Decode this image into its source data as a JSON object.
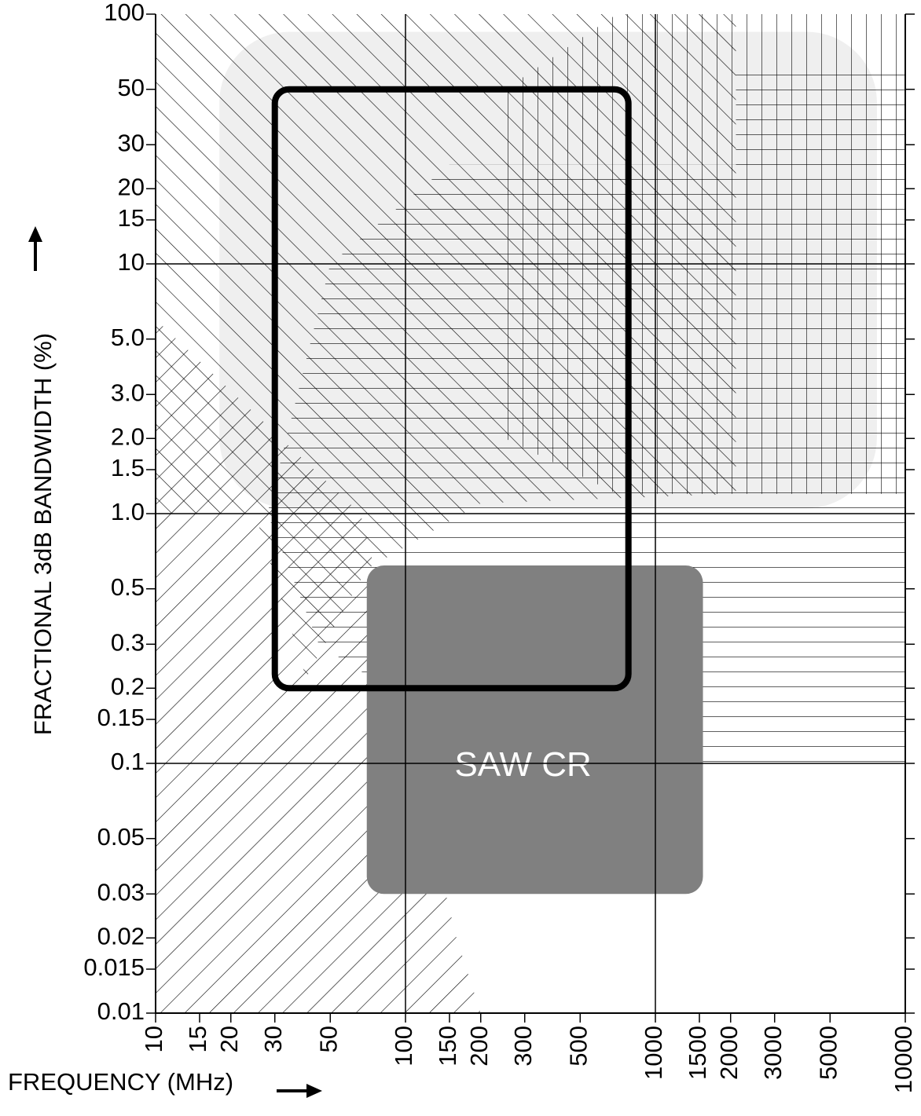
{
  "chart_data": {
    "type": "region",
    "xlabel": "FREQUENCY (MHz)",
    "ylabel": "FRACTIONAL 3dB BANDWIDTH (%)",
    "log_x": true,
    "log_y": true,
    "xlim": [
      10,
      10000
    ],
    "ylim": [
      0.01,
      100
    ],
    "xticks": [
      10,
      15,
      20,
      30,
      50,
      100,
      150,
      200,
      300,
      500,
      1000,
      1500,
      2000,
      3000,
      5000,
      10000
    ],
    "yticks": [
      100,
      50,
      30,
      20,
      15,
      10,
      {
        "value": 5,
        "label": "5.0"
      },
      {
        "value": 3,
        "label": "3.0"
      },
      {
        "value": 2,
        "label": "2.0"
      },
      1.5,
      {
        "value": 1,
        "label": "1.0"
      },
      0.5,
      0.3,
      0.2,
      0.15,
      0.1,
      0.05,
      0.03,
      0.02,
      0.015,
      0.01
    ],
    "grid": true,
    "shaded_area": {
      "color": "#efefef",
      "xlim": [
        18,
        7700
      ],
      "ylim": [
        1.05,
        85
      ]
    },
    "hatches": [
      {
        "pattern": "backslash",
        "x": [
          10,
          2100,
          2100,
          200,
          70,
          40,
          25,
          10
        ],
        "y": [
          100,
          100,
          1.2,
          1.1,
          0.6,
          0.22,
          1.0,
          1.0
        ]
      },
      {
        "pattern": "slash",
        "x": [
          10,
          66,
          120,
          128,
          160,
          200,
          10
        ],
        "y": [
          6,
          1.0,
          0.1,
          0.05,
          0.02,
          0.01,
          0.01
        ]
      },
      {
        "pattern": "horizontal",
        "x": [
          150,
          2100,
          2100,
          10000,
          10000,
          250,
          45,
          28,
          50
        ],
        "y": [
          25,
          25,
          60,
          60,
          0.1,
          0.1,
          0.3,
          1.0,
          10
        ]
      },
      {
        "pattern": "vertical",
        "x": [
          250,
          700,
          10000,
          10000,
          700,
          250
        ],
        "y": [
          50,
          100,
          100,
          1.2,
          1.2,
          2
        ]
      }
    ],
    "saw_cr": {
      "label": "SAW CR",
      "color": "#808080",
      "xlim": [
        70,
        1550
      ],
      "ylim": [
        0.03,
        0.62
      ]
    },
    "outline": {
      "color": "#000000",
      "xlim": [
        30,
        780
      ],
      "ylim": [
        0.2,
        50
      ]
    }
  }
}
